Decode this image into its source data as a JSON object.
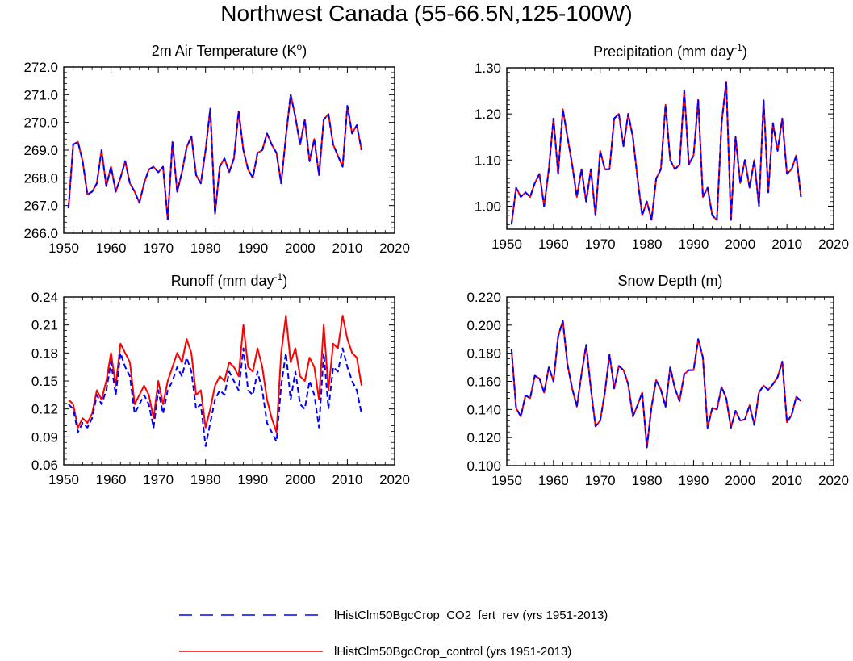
{
  "figure_title": "Northwest Canada (55-66.5N,125-100W)",
  "series_styles": [
    {
      "key": "co2",
      "color": "#0000ff",
      "dash": true
    },
    {
      "key": "control",
      "color": "#ff0000",
      "dash": false
    }
  ],
  "legend": [
    {
      "key": "co2",
      "label": "lHistClm50BgcCrop_CO2_fert_rev (yrs 1951-2013)",
      "color": "#0000ff",
      "dash": true
    },
    {
      "key": "control",
      "label": "lHistClm50BgcCrop_control (yrs 1951-2013)",
      "color": "#ff0000",
      "dash": false
    }
  ],
  "chart_data": [
    {
      "type": "line",
      "title": "2m Air Temperature",
      "title_unit": "K",
      "title_sup": "o",
      "title_suffix": ")",
      "xlim": [
        1950,
        2020
      ],
      "xticks": [
        1950,
        1960,
        1970,
        1980,
        1990,
        2000,
        2010,
        2020
      ],
      "xtick_labels": [
        "1950",
        "1960",
        "1970",
        "1980",
        "1990",
        "2000",
        "2010",
        "2020"
      ],
      "ylim": [
        266.0,
        272.0
      ],
      "yticks": [
        266.0,
        267.0,
        268.0,
        269.0,
        270.0,
        271.0,
        272.0
      ],
      "ytick_labels": [
        "266.0",
        "267.0",
        "268.0",
        "269.0",
        "270.0",
        "271.0",
        "272.0"
      ],
      "x_start": 1951,
      "series": [
        {
          "key": "control",
          "values": [
            266.9,
            269.2,
            269.3,
            268.6,
            267.4,
            267.5,
            267.8,
            269.0,
            267.7,
            268.4,
            267.5,
            268.0,
            268.6,
            267.8,
            267.5,
            267.1,
            267.8,
            268.3,
            268.4,
            268.2,
            268.4,
            266.5,
            269.3,
            267.5,
            268.2,
            269.1,
            269.5,
            268.1,
            267.8,
            269.0,
            270.5,
            266.7,
            268.4,
            268.7,
            268.2,
            268.7,
            270.4,
            269.0,
            268.3,
            268.0,
            268.9,
            269.0,
            269.6,
            269.2,
            268.9,
            267.8,
            269.5,
            271.0,
            270.2,
            269.2,
            270.1,
            268.6,
            269.4,
            268.1,
            270.1,
            270.3,
            269.2,
            268.8,
            268.4,
            270.6,
            269.6,
            269.9,
            269.0
          ]
        },
        {
          "key": "co2",
          "values": [
            266.9,
            269.2,
            269.3,
            268.6,
            267.4,
            267.5,
            267.8,
            269.0,
            267.7,
            268.4,
            267.5,
            268.0,
            268.6,
            267.8,
            267.5,
            267.1,
            267.8,
            268.3,
            268.4,
            268.2,
            268.4,
            266.5,
            269.3,
            267.5,
            268.2,
            269.1,
            269.5,
            268.1,
            267.8,
            269.0,
            270.5,
            266.7,
            268.4,
            268.7,
            268.2,
            268.7,
            270.4,
            269.0,
            268.3,
            268.0,
            268.9,
            269.0,
            269.6,
            269.2,
            268.9,
            267.8,
            269.5,
            271.0,
            270.2,
            269.2,
            270.1,
            268.6,
            269.4,
            268.1,
            270.1,
            270.3,
            269.2,
            268.8,
            268.4,
            270.6,
            269.6,
            269.9,
            269.0
          ]
        }
      ]
    },
    {
      "type": "line",
      "title": "Precipitation",
      "title_unit": "mm day",
      "title_sup": "-1",
      "title_suffix": ")",
      "xlim": [
        1950,
        2020
      ],
      "xticks": [
        1950,
        1960,
        1970,
        1980,
        1990,
        2000,
        2010,
        2020
      ],
      "xtick_labels": [
        "1950",
        "1960",
        "1970",
        "1980",
        "1990",
        "2000",
        "2010",
        "2020"
      ],
      "ylim": [
        0.95,
        1.3
      ],
      "yticks": [
        1.0,
        1.1,
        1.2,
        1.3
      ],
      "ytick_labels": [
        "1.00",
        "1.10",
        "1.20",
        "1.30"
      ],
      "minor_yticks": [
        0.95,
        0.96,
        0.97,
        0.98,
        0.99,
        1.01,
        1.02,
        1.03,
        1.04,
        1.05,
        1.06,
        1.07,
        1.08,
        1.09,
        1.11,
        1.12,
        1.13,
        1.14,
        1.15,
        1.16,
        1.17,
        1.18,
        1.19,
        1.21,
        1.22,
        1.23,
        1.24,
        1.25,
        1.26,
        1.27,
        1.28,
        1.29
      ],
      "x_start": 1951,
      "series": [
        {
          "key": "control",
          "values": [
            0.96,
            1.04,
            1.02,
            1.03,
            1.02,
            1.05,
            1.07,
            1.0,
            1.08,
            1.19,
            1.07,
            1.21,
            1.15,
            1.09,
            1.02,
            1.08,
            1.01,
            1.08,
            0.98,
            1.12,
            1.08,
            1.08,
            1.19,
            1.2,
            1.13,
            1.2,
            1.15,
            1.06,
            0.98,
            1.01,
            0.97,
            1.06,
            1.08,
            1.22,
            1.1,
            1.08,
            1.09,
            1.25,
            1.09,
            1.11,
            1.23,
            1.02,
            1.04,
            0.98,
            0.97,
            1.18,
            1.27,
            0.97,
            1.15,
            1.05,
            1.1,
            1.04,
            1.1,
            1.0,
            1.23,
            1.03,
            1.18,
            1.12,
            1.19,
            1.07,
            1.08,
            1.11,
            1.02
          ]
        },
        {
          "key": "co2",
          "values": [
            0.96,
            1.04,
            1.02,
            1.03,
            1.02,
            1.05,
            1.07,
            1.0,
            1.08,
            1.19,
            1.07,
            1.21,
            1.15,
            1.09,
            1.02,
            1.08,
            1.01,
            1.08,
            0.98,
            1.12,
            1.08,
            1.08,
            1.19,
            1.2,
            1.13,
            1.2,
            1.15,
            1.06,
            0.98,
            1.01,
            0.97,
            1.06,
            1.08,
            1.22,
            1.1,
            1.08,
            1.09,
            1.25,
            1.09,
            1.11,
            1.23,
            1.02,
            1.04,
            0.98,
            0.97,
            1.18,
            1.27,
            0.97,
            1.15,
            1.05,
            1.1,
            1.04,
            1.1,
            1.0,
            1.23,
            1.03,
            1.18,
            1.12,
            1.19,
            1.07,
            1.08,
            1.11,
            1.02
          ]
        }
      ]
    },
    {
      "type": "line",
      "title": "Runoff",
      "title_unit": "mm day",
      "title_sup": "-1",
      "title_suffix": ")",
      "xlim": [
        1950,
        2020
      ],
      "xticks": [
        1950,
        1960,
        1970,
        1980,
        1990,
        2000,
        2010,
        2020
      ],
      "xtick_labels": [
        "1950",
        "1960",
        "1970",
        "1980",
        "1990",
        "2000",
        "2010",
        "2020"
      ],
      "ylim": [
        0.06,
        0.24
      ],
      "yticks": [
        0.06,
        0.09,
        0.12,
        0.15,
        0.18,
        0.21,
        0.24
      ],
      "ytick_labels": [
        "0.06",
        "0.09",
        "0.12",
        "0.15",
        "0.18",
        "0.21",
        "0.24"
      ],
      "x_start": 1951,
      "series": [
        {
          "key": "control",
          "values": [
            0.13,
            0.125,
            0.1,
            0.11,
            0.105,
            0.115,
            0.14,
            0.13,
            0.15,
            0.18,
            0.145,
            0.19,
            0.18,
            0.17,
            0.125,
            0.135,
            0.145,
            0.135,
            0.11,
            0.15,
            0.125,
            0.15,
            0.165,
            0.18,
            0.17,
            0.195,
            0.18,
            0.135,
            0.14,
            0.1,
            0.12,
            0.145,
            0.155,
            0.15,
            0.17,
            0.165,
            0.155,
            0.21,
            0.165,
            0.16,
            0.185,
            0.165,
            0.13,
            0.11,
            0.095,
            0.18,
            0.22,
            0.17,
            0.185,
            0.155,
            0.15,
            0.175,
            0.165,
            0.13,
            0.21,
            0.14,
            0.19,
            0.185,
            0.22,
            0.195,
            0.18,
            0.175,
            0.145
          ]
        },
        {
          "key": "co2",
          "values": [
            0.125,
            0.12,
            0.095,
            0.105,
            0.1,
            0.11,
            0.135,
            0.125,
            0.14,
            0.17,
            0.135,
            0.18,
            0.165,
            0.155,
            0.115,
            0.125,
            0.135,
            0.125,
            0.1,
            0.14,
            0.115,
            0.14,
            0.15,
            0.165,
            0.155,
            0.175,
            0.16,
            0.12,
            0.125,
            0.08,
            0.105,
            0.13,
            0.14,
            0.135,
            0.16,
            0.15,
            0.14,
            0.185,
            0.14,
            0.135,
            0.16,
            0.14,
            0.105,
            0.095,
            0.085,
            0.145,
            0.18,
            0.13,
            0.16,
            0.125,
            0.12,
            0.15,
            0.135,
            0.1,
            0.18,
            0.12,
            0.165,
            0.16,
            0.185,
            0.165,
            0.15,
            0.14,
            0.115
          ]
        }
      ]
    },
    {
      "type": "line",
      "title": "Snow Depth (m)",
      "title_unit": "",
      "title_sup": "",
      "title_suffix": "",
      "xlim": [
        1950,
        2020
      ],
      "xticks": [
        1950,
        1960,
        1970,
        1980,
        1990,
        2000,
        2010,
        2020
      ],
      "xtick_labels": [
        "1950",
        "1960",
        "1970",
        "1980",
        "1990",
        "2000",
        "2010",
        "2020"
      ],
      "ylim": [
        0.1,
        0.22
      ],
      "yticks": [
        0.1,
        0.12,
        0.14,
        0.16,
        0.18,
        0.2,
        0.22
      ],
      "ytick_labels": [
        "0.100",
        "0.120",
        "0.140",
        "0.160",
        "0.180",
        "0.200",
        "0.220"
      ],
      "x_start": 1951,
      "series": [
        {
          "key": "control",
          "values": [
            0.183,
            0.141,
            0.135,
            0.15,
            0.148,
            0.164,
            0.162,
            0.152,
            0.17,
            0.16,
            0.192,
            0.203,
            0.172,
            0.155,
            0.142,
            0.165,
            0.186,
            0.155,
            0.128,
            0.132,
            0.152,
            0.179,
            0.155,
            0.171,
            0.168,
            0.158,
            0.135,
            0.143,
            0.152,
            0.113,
            0.142,
            0.161,
            0.154,
            0.142,
            0.17,
            0.155,
            0.146,
            0.165,
            0.168,
            0.168,
            0.19,
            0.177,
            0.127,
            0.141,
            0.14,
            0.156,
            0.148,
            0.127,
            0.139,
            0.132,
            0.133,
            0.143,
            0.129,
            0.152,
            0.157,
            0.154,
            0.158,
            0.163,
            0.174,
            0.131,
            0.136,
            0.149,
            0.146
          ]
        },
        {
          "key": "co2",
          "values": [
            0.183,
            0.141,
            0.135,
            0.15,
            0.148,
            0.164,
            0.162,
            0.152,
            0.17,
            0.16,
            0.192,
            0.203,
            0.172,
            0.155,
            0.142,
            0.165,
            0.186,
            0.155,
            0.128,
            0.132,
            0.152,
            0.179,
            0.155,
            0.171,
            0.168,
            0.158,
            0.135,
            0.143,
            0.152,
            0.113,
            0.142,
            0.161,
            0.154,
            0.142,
            0.17,
            0.155,
            0.146,
            0.165,
            0.168,
            0.168,
            0.19,
            0.177,
            0.127,
            0.141,
            0.14,
            0.156,
            0.148,
            0.127,
            0.139,
            0.132,
            0.133,
            0.143,
            0.129,
            0.152,
            0.157,
            0.154,
            0.158,
            0.163,
            0.174,
            0.131,
            0.136,
            0.149,
            0.146
          ]
        }
      ]
    }
  ]
}
